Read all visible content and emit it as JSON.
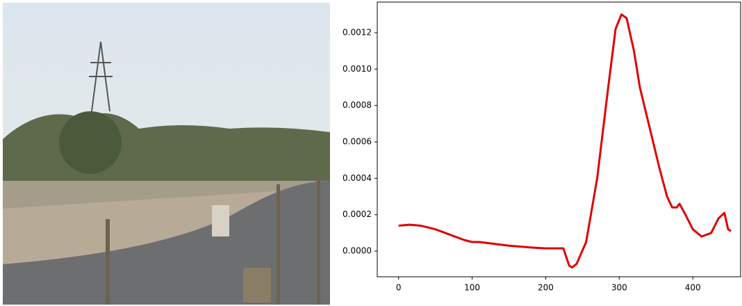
{
  "chart_data": {
    "type": "line",
    "x": [
      0,
      15,
      30,
      50,
      70,
      90,
      100,
      110,
      130,
      150,
      180,
      200,
      224,
      232,
      236,
      242,
      255,
      270,
      285,
      295,
      303,
      310,
      320,
      328,
      340,
      355,
      365,
      372,
      378,
      382,
      390,
      400,
      412,
      425,
      435,
      443,
      448,
      452
    ],
    "values": [
      0.00014,
      0.000145,
      0.00014,
      0.00012,
      9e-05,
      6e-05,
      5e-05,
      5e-05,
      4e-05,
      3e-05,
      2e-05,
      1.5e-05,
      1.5e-05,
      -8e-05,
      -9e-05,
      -7e-05,
      5e-05,
      0.0004,
      0.0009,
      0.00122,
      0.0013,
      0.00128,
      0.0011,
      0.0009,
      0.0007,
      0.00045,
      0.0003,
      0.00024,
      0.00024,
      0.00026,
      0.0002,
      0.00012,
      8e-05,
      0.0001,
      0.00018,
      0.00021,
      0.00012,
      0.00011
    ],
    "color": "#e00000",
    "xlim": [
      -29,
      465
    ],
    "xticks": [
      0,
      100,
      200,
      300,
      400
    ],
    "ylim": [
      -0.000141,
      0.001368
    ],
    "yticks": [
      {
        "value": 0,
        "label": "0.0000"
      },
      {
        "value": 0.0002,
        "label": "0.0002"
      },
      {
        "value": 0.0004,
        "label": "0.0004"
      },
      {
        "value": 0.0006,
        "label": "0.0006"
      },
      {
        "value": 0.0008,
        "label": "0.0008"
      },
      {
        "value": 0.001,
        "label": "0.0010"
      },
      {
        "value": 0.0012,
        "label": "0.0012"
      }
    ]
  }
}
